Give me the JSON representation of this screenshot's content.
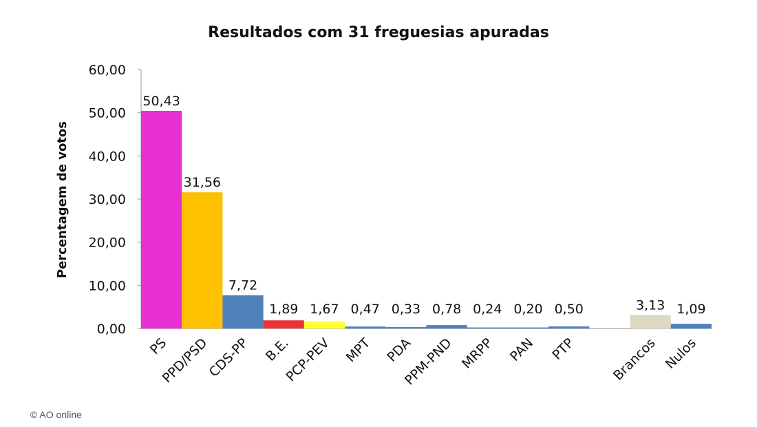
{
  "chart_data": {
    "type": "bar",
    "title": "Resultados com 31 freguesias apuradas",
    "xlabel": "",
    "ylabel": "Percentagem de votos",
    "ylim": [
      0,
      60
    ],
    "yticks": [
      "0,00",
      "10,00",
      "20,00",
      "30,00",
      "40,00",
      "50,00",
      "60,00"
    ],
    "grid": false,
    "legend": "none",
    "categories": [
      "PS",
      "PPD/PSD",
      "CDS-PP",
      "B.E.",
      "PCP-PEV",
      "MPT",
      "PDA",
      "PPM-PND",
      "MRPP",
      "PAN",
      "PTP",
      "",
      "Brancos",
      "Nulos"
    ],
    "values": [
      50.43,
      31.56,
      7.72,
      1.89,
      1.67,
      0.47,
      0.33,
      0.78,
      0.24,
      0.2,
      0.5,
      null,
      3.13,
      1.09
    ],
    "value_labels": [
      "50,43",
      "31,56",
      "7,72",
      "1,89",
      "1,67",
      "0,47",
      "0,33",
      "0,78",
      "0,24",
      "0,20",
      "0,50",
      "",
      "3,13",
      "1,09"
    ],
    "colors": [
      "#e630d2",
      "#ffc000",
      "#4f81bd",
      "#ea3535",
      "#ffff33",
      "#4f81bd",
      "#4f81bd",
      "#4f81bd",
      "#4f81bd",
      "#4f81bd",
      "#4f81bd",
      "#ffffff",
      "#ddd9c3",
      "#4f81bd"
    ]
  },
  "credit": "© AO online"
}
